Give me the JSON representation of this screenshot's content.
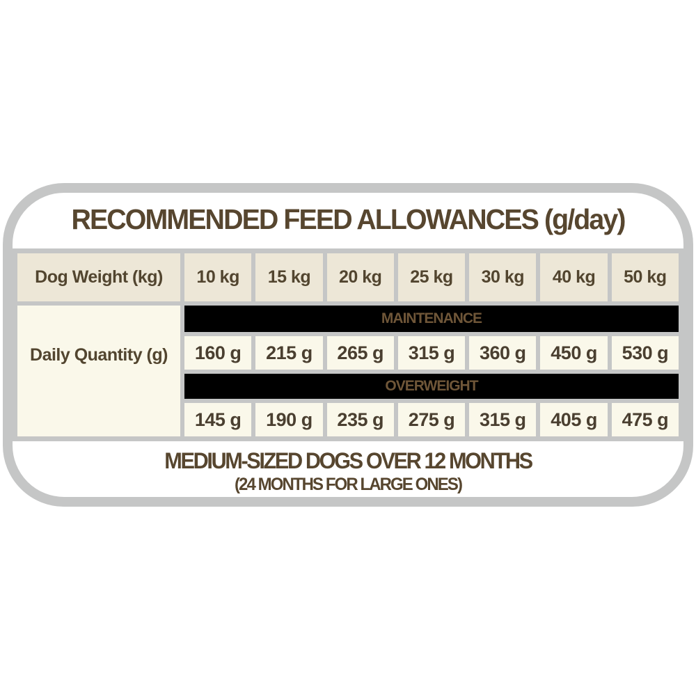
{
  "title": "RECOMMENDED FEED ALLOWANCES (g/day)",
  "table": {
    "weight_header": "Dog Weight (kg)",
    "weights": [
      "10 kg",
      "15 kg",
      "20 kg",
      "25 kg",
      "30 kg",
      "40 kg",
      "50 kg"
    ],
    "quantity_header": "Daily Quantity (g)",
    "maintenance_label": "MAINTENANCE",
    "maintenance_values": [
      "160 g",
      "215 g",
      "265 g",
      "315 g",
      "360 g",
      "450 g",
      "530 g"
    ],
    "overweight_label": "OVERWEIGHT",
    "overweight_values": [
      "145 g",
      "190 g",
      "235 g",
      "275 g",
      "315 g",
      "405 g",
      "475 g"
    ]
  },
  "footer": {
    "line1": "MEDIUM-SIZED DOGS OVER 12 MONTHS",
    "line2": "(24 MONTHS FOR LARGE ONES)"
  },
  "colors": {
    "accent_brown": "#57462f",
    "band_background": "#000000",
    "band_text": "#6f5638",
    "header_cell_background": "#ede7d7",
    "value_cell_background": "#faf8ea",
    "grid_gray": "#c5c6c6"
  },
  "chart_data": {
    "type": "table",
    "title": "RECOMMENDED FEED ALLOWANCES (g/day)",
    "columns": [
      "Dog Weight (kg)",
      "10 kg",
      "15 kg",
      "20 kg",
      "25 kg",
      "30 kg",
      "40 kg",
      "50 kg"
    ],
    "row_group_label": "Daily Quantity (g)",
    "rows": [
      {
        "section": "MAINTENANCE",
        "values_g": [
          160,
          215,
          265,
          315,
          360,
          450,
          530
        ]
      },
      {
        "section": "OVERWEIGHT",
        "values_g": [
          145,
          190,
          235,
          275,
          315,
          405,
          475
        ]
      }
    ],
    "dog_weights_kg": [
      10,
      15,
      20,
      25,
      30,
      40,
      50
    ],
    "notes": [
      "MEDIUM-SIZED DOGS OVER 12 MONTHS",
      "(24 MONTHS FOR LARGE ONES)"
    ]
  }
}
